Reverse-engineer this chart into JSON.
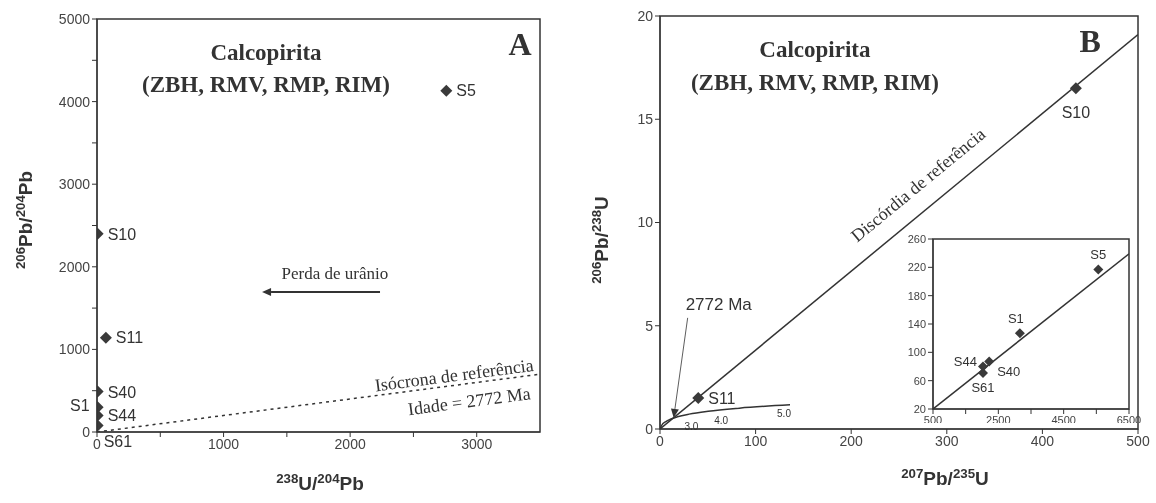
{
  "chart_data": [
    {
      "type": "scatter",
      "title": "Calcopirita",
      "subtitle": "(ZBH, RMV, RMP, RIM)",
      "xlabel": "$^{238}$U/$^{204}$Pb",
      "ylabel": "$^{206}$Pb/$^{204}$Pb",
      "xlim": [
        0,
        3500
      ],
      "xticks": [
        0,
        {
          "value": 500,
          "label": null
        },
        1000,
        {
          "value": 1500,
          "label": null
        },
        2000,
        {
          "value": 2500,
          "label": null
        },
        3000
      ],
      "ylim": [
        0,
        5000
      ],
      "yticks": [
        0,
        {
          "value": 500,
          "label": null
        },
        1000,
        {
          "value": 1500,
          "label": null
        },
        2000,
        {
          "value": 2500,
          "label": null
        },
        3000,
        {
          "value": 3500,
          "label": null
        },
        4000,
        {
          "value": 4500,
          "label": null
        },
        5000
      ],
      "line_style": "dotted",
      "annotations": [
        "A",
        "Perda de urânio",
        "Isócrona de referência",
        "Idade = 2772 Ma"
      ],
      "series": [
        {
          "name": "S5",
          "color": "#3a3a3a",
          "marker": "diamond",
          "x": [
            2760
          ],
          "values": [
            4130
          ]
        },
        {
          "name": "S10",
          "color": "#3a3a3a",
          "marker": "diamond",
          "x": [
            5
          ],
          "values": [
            2400
          ]
        },
        {
          "name": "S11",
          "color": "#3a3a3a",
          "marker": "diamond",
          "x": [
            70
          ],
          "values": [
            1140
          ]
        },
        {
          "name": "S40",
          "color": "#3a3a3a",
          "marker": "diamond",
          "x": [
            5
          ],
          "values": [
            490
          ]
        },
        {
          "name": "S1",
          "color": "#3a3a3a",
          "marker": "diamond",
          "x": [
            5
          ],
          "values": [
            300
          ]
        },
        {
          "name": "S44",
          "color": "#3a3a3a",
          "marker": "diamond",
          "x": [
            5
          ],
          "values": [
            200
          ]
        },
        {
          "name": "S61",
          "color": "#3a3a3a",
          "marker": "diamond",
          "x": [
            5
          ],
          "values": [
            80
          ]
        },
        {
          "type": "line",
          "color": "#333333",
          "x": [
            0,
            3500
          ],
          "values": [
            0,
            700
          ]
        }
      ]
    },
    {
      "type": "scatter",
      "title": "Calcopirita",
      "subtitle": "(ZBH, RMV, RMP, RIM)",
      "xlabel": "$^{207}$Pb/$^{235}$U",
      "ylabel": "$^{206}$Pb/$^{238}$U",
      "xlim": [
        0,
        500
      ],
      "xticks": [
        0,
        100,
        200,
        300,
        400,
        500
      ],
      "ylim": [
        0,
        20
      ],
      "yticks": [
        0,
        5,
        10,
        15,
        20
      ],
      "line_style": "solid",
      "annotations": [
        "B",
        "Discórdia de referência",
        {
          "text": "2772 Ma",
          "x": 14.3,
          "y": 0.54
        },
        {
          "text": "3.0",
          "x": 18.2,
          "y": 0.59
        },
        {
          "text": "4.0",
          "x": 50.4,
          "y": 0.86
        },
        {
          "text": "5.0",
          "x": 136,
          "y": 1.17
        }
      ],
      "series": [
        {
          "name": "S10",
          "color": "#3a3a3a",
          "marker": "diamond",
          "x": [
            435
          ],
          "values": [
            16.5
          ]
        },
        {
          "name": "S11",
          "color": "#3a3a3a",
          "marker": "diamond",
          "x": [
            40
          ],
          "values": [
            1.5
          ]
        },
        {
          "type": "line",
          "color": "#333333",
          "x": [
            0,
            500
          ],
          "values": [
            0,
            19.1
          ]
        },
        {
          "type": "line",
          "color": "#333333",
          "x": [
            0,
            1.68,
            6.2,
            10.8,
            18.2,
            30.5,
            50.4,
            83,
            136
          ],
          "values": [
            0,
            0.17,
            0.36,
            0.47,
            0.59,
            0.72,
            0.86,
            1.01,
            1.17
          ]
        }
      ]
    },
    {
      "type": "scatter",
      "xlim": [
        500,
        6500
      ],
      "xticks": [
        500,
        {
          "value": 1500,
          "label": null
        },
        2500,
        {
          "value": 3500,
          "label": null
        },
        4500,
        {
          "value": 5500,
          "label": null
        },
        6500
      ],
      "ylim": [
        20,
        260
      ],
      "yticks": [
        20,
        60,
        100,
        140,
        180,
        220,
        260
      ],
      "line_style": "solid",
      "series": [
        {
          "name": "S5",
          "color": "#3a3a3a",
          "marker": "diamond",
          "x": [
            5560
          ],
          "values": [
            217
          ]
        },
        {
          "name": "S1",
          "color": "#3a3a3a",
          "marker": "diamond",
          "x": [
            3160
          ],
          "values": [
            127
          ]
        },
        {
          "name": "S40",
          "color": "#3a3a3a",
          "marker": "diamond",
          "x": [
            2220
          ],
          "values": [
            87
          ]
        },
        {
          "name": "S44",
          "color": "#3a3a3a",
          "marker": "diamond",
          "x": [
            2030
          ],
          "values": [
            80
          ]
        },
        {
          "name": "S61",
          "color": "#3a3a3a",
          "marker": "diamond",
          "x": [
            2030
          ],
          "values": [
            71
          ]
        },
        {
          "type": "line",
          "color": "#333333",
          "x": [
            500,
            6500
          ],
          "values": [
            20,
            239
          ]
        }
      ]
    }
  ]
}
